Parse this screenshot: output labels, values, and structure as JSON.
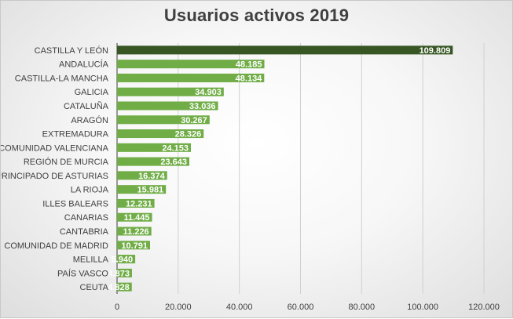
{
  "chart_data": {
    "type": "bar",
    "orientation": "horizontal",
    "title": "Usuarios activos 2019",
    "xlabel": "",
    "ylabel": "",
    "xlim": [
      0,
      120000
    ],
    "x_ticks": [
      0,
      20000,
      40000,
      60000,
      80000,
      100000,
      120000
    ],
    "x_tick_labels": [
      "0",
      "20.000",
      "40.000",
      "60.000",
      "80.000",
      "100.000",
      "120.000"
    ],
    "grid": true,
    "legend": "none",
    "categories": [
      "CASTILLA Y LEÓN",
      "ANDALUCÍA",
      "CASTILLA-LA MANCHA",
      "GALICIA",
      "CATALUÑA",
      "ARAGÓN",
      "EXTREMADURA",
      "COMUNIDAD VALENCIANA",
      "REGIÓN DE MURCIA",
      "PRINCIPADO DE ASTURIAS",
      "LA RIOJA",
      "ILLES BALEARS",
      "CANARIAS",
      "CANTABRIA",
      "COMUNIDAD DE MADRID",
      "MELILLA",
      "PAÍS VASCO",
      "CEUTA"
    ],
    "values": [
      109809,
      48185,
      48134,
      34903,
      33036,
      30267,
      28326,
      24153,
      23643,
      16374,
      15981,
      12231,
      11445,
      11226,
      10791,
      5940,
      4873,
      4828
    ],
    "value_labels": [
      "109.809",
      "48.185",
      "48.134",
      "34.903",
      "33.036",
      "30.267",
      "28.326",
      "24.153",
      "23.643",
      "16.374",
      "15.981",
      "12.231",
      "11.445",
      "11.226",
      "10.791",
      "5.940",
      "4.873",
      "4.828"
    ],
    "colors": {
      "highlight": "#375623",
      "bar": "#70ad47",
      "text": "#404040",
      "grid": "#d0d0d0"
    }
  }
}
